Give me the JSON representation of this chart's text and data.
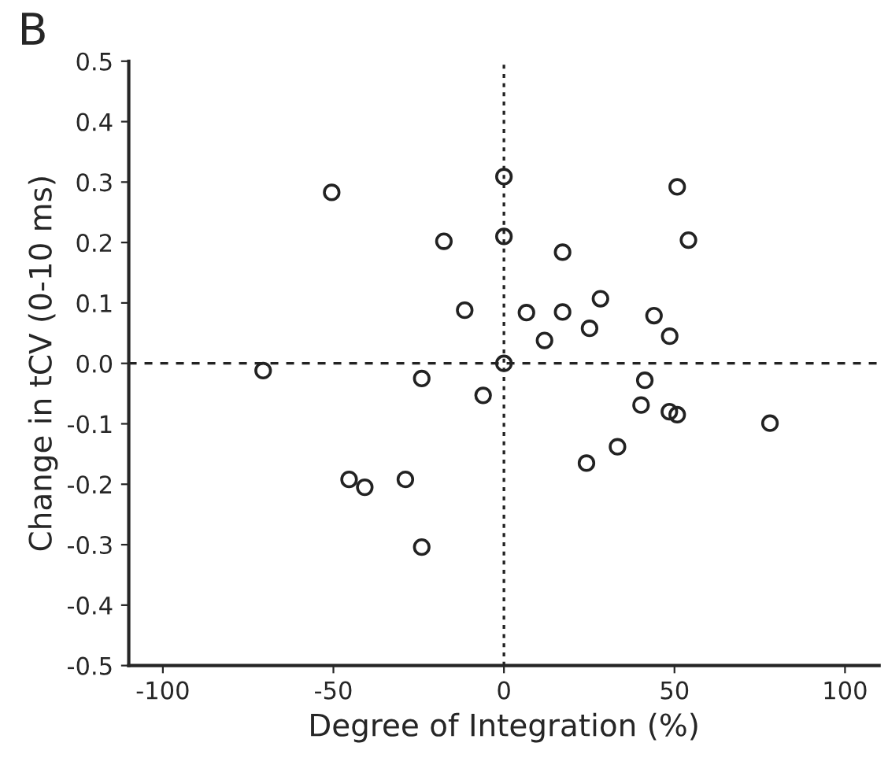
{
  "chart_data": {
    "type": "scatter",
    "xlabel": "Degree of Integration (%)",
    "ylabel": "Change in tCV (0-10 ms)",
    "annotations": [
      "B"
    ],
    "x": [
      -50.5,
      -70.6,
      -17.6,
      -11.5,
      -24.1,
      -6.1,
      -45.4,
      -40.8,
      -28.9,
      -24.1,
      0,
      0,
      0,
      6.6,
      17.2,
      17.2,
      11.9,
      28.3,
      25.1,
      44,
      48.6,
      50.8,
      54.1,
      41.3,
      40.2,
      48.5,
      50.8,
      33.3,
      24.2,
      78
    ],
    "values": [
      0.283,
      -0.012,
      0.202,
      0.088,
      -0.025,
      -0.053,
      -0.192,
      -0.205,
      -0.192,
      -0.304,
      0.309,
      0.21,
      0.0,
      0.084,
      0.184,
      0.085,
      0.038,
      0.107,
      0.058,
      0.079,
      0.045,
      0.292,
      0.204,
      -0.028,
      -0.069,
      -0.08,
      -0.085,
      -0.138,
      -0.165,
      -0.099
    ],
    "color": "#222222",
    "marker": "circle",
    "xlim": [
      -110,
      110
    ],
    "xticks": [
      -100,
      -50,
      0,
      50,
      100
    ],
    "ylim": [
      -0.5,
      0.5
    ],
    "yticks": [
      -0.5,
      -0.4,
      -0.3,
      -0.2,
      -0.1,
      {
        "value": 0,
        "label": "0.0"
      },
      0.1,
      0.2,
      0.3,
      0.4,
      0.5
    ],
    "ref_lines": [
      {
        "axis": "x",
        "value": 0,
        "line_style": "dotted"
      },
      {
        "axis": "y",
        "value": 0,
        "line_style": "dashed"
      }
    ],
    "grid": false,
    "legend": false
  }
}
